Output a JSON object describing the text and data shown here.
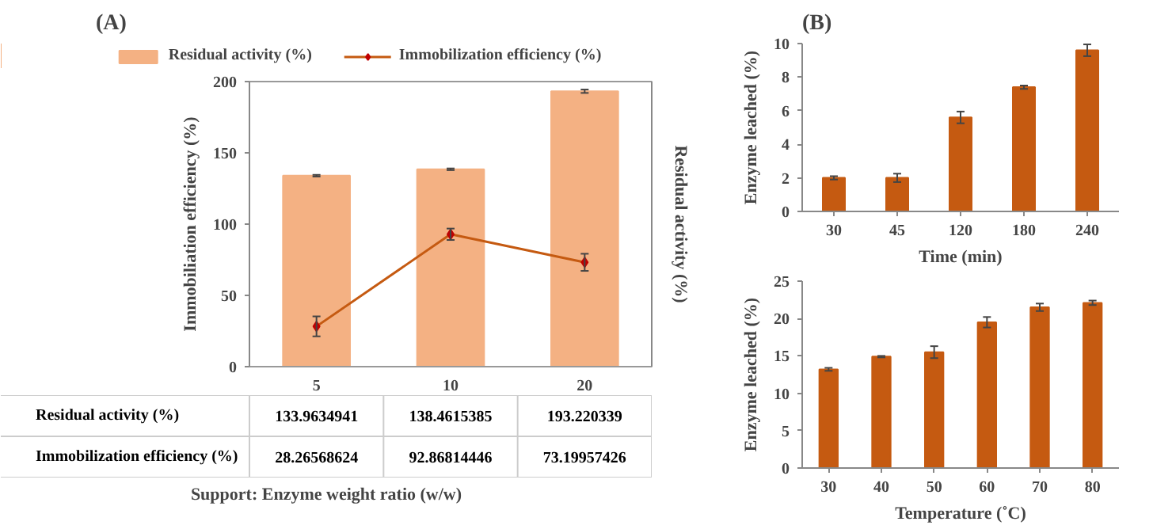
{
  "chart_data": [
    {
      "type": "bar",
      "title": "(A)",
      "xlabel": "Support: Enzyme weight ratio (w/w)",
      "ylabel": "Immobiliation efficiency (%)",
      "y2label": "Residual activity (%)",
      "categories": [
        "5",
        "10",
        "20"
      ],
      "ylim": [
        0,
        200
      ],
      "yticks": [
        0,
        50,
        100,
        150,
        200
      ],
      "grid": false,
      "legend": "top",
      "data_labels": true,
      "marker": "diamond",
      "series": [
        {
          "name": "Residual activity (%)",
          "type": "bar",
          "color": "#f4b183",
          "values": [
            133.9634941,
            138.4615385,
            193.220339
          ],
          "errors": [
            0.6,
            0.6,
            1.2
          ]
        },
        {
          "name": "Immobilization efficiency (%)",
          "type": "line",
          "color": "#c55a11",
          "values": [
            28.26568624,
            92.86814446,
            73.19957426
          ],
          "errors": [
            7,
            4,
            6
          ]
        }
      ]
    },
    {
      "type": "bar",
      "title": "(B)",
      "xlabel": "Time (min)",
      "ylabel": "Enzyme leached (%)",
      "categories": [
        "30",
        "45",
        "120",
        "180",
        "240"
      ],
      "ylim": [
        0,
        10
      ],
      "yticks": [
        0,
        2,
        4,
        6,
        8,
        10
      ],
      "grid": false,
      "series": [
        {
          "color": "#c55a11",
          "values": [
            2.0,
            2.0,
            5.6,
            7.4,
            9.6
          ],
          "errors": [
            0.1,
            0.25,
            0.35,
            0.1,
            0.35
          ]
        }
      ]
    },
    {
      "type": "bar",
      "xlabel": "Temperature (˚C)",
      "ylabel": "Enzyme leached (%)",
      "categories": [
        "30",
        "40",
        "50",
        "60",
        "70",
        "80"
      ],
      "ylim": [
        0,
        25
      ],
      "yticks": [
        0,
        5,
        10,
        15,
        20,
        25
      ],
      "grid": false,
      "series": [
        {
          "color": "#c55a11",
          "values": [
            13.2,
            14.9,
            15.5,
            19.5,
            21.5,
            22.1
          ],
          "errors": [
            0.2,
            0.1,
            0.8,
            0.7,
            0.5,
            0.3
          ]
        }
      ]
    }
  ]
}
